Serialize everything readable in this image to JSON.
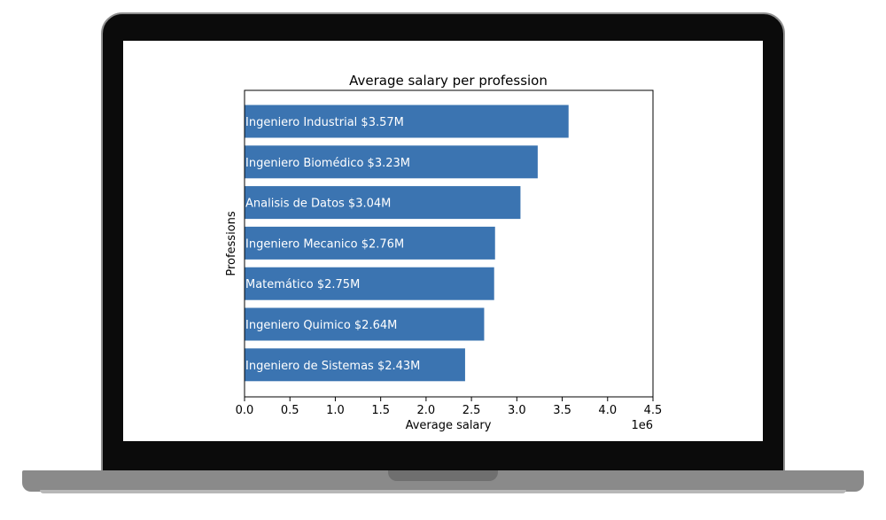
{
  "chart_data": {
    "type": "bar",
    "orientation": "horizontal",
    "title": "Average salary per profession",
    "xlabel": "Average salary",
    "ylabel": "Professions",
    "xlim": [
      0,
      4500000
    ],
    "x_ticks": [
      0,
      500000,
      1000000,
      1500000,
      2000000,
      2500000,
      3000000,
      3500000,
      4000000,
      4500000
    ],
    "x_tick_labels": [
      "0.0",
      "0.5",
      "1.0",
      "1.5",
      "2.0",
      "2.5",
      "3.0",
      "3.5",
      "4.0",
      "4.5"
    ],
    "x_offset_label": "1e6",
    "bar_color": "#3b74b1",
    "grid": false,
    "categories": [
      "Ingeniero Industrial",
      "Ingeniero Biomédico",
      "Analisis de Datos",
      "Ingeniero Mecanico",
      "Matemático",
      "Ingeniero Quimico",
      "Ingeniero de Sistemas"
    ],
    "values": [
      3570000,
      3230000,
      3040000,
      2760000,
      2750000,
      2640000,
      2430000
    ],
    "bar_labels": [
      "Ingeniero Industrial $3.57M",
      "Ingeniero Biomédico $3.23M",
      "Analisis de Datos $3.04M",
      "Ingeniero Mecanico $2.76M",
      "Matemático $2.75M",
      "Ingeniero Quimico $2.64M",
      "Ingeniero de Sistemas $2.43M"
    ]
  }
}
